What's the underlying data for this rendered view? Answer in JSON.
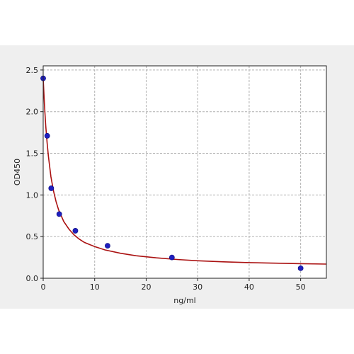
{
  "chart_data": {
    "type": "scatter",
    "title": "",
    "xlabel": "ng/ml",
    "ylabel": "OD450",
    "xlim": [
      0,
      55
    ],
    "ylim": [
      0,
      2.55
    ],
    "x_ticks": [
      0,
      10,
      20,
      30,
      40,
      50
    ],
    "x_tick_labels": [
      "0",
      "10",
      "20",
      "30",
      "40",
      "50"
    ],
    "y_ticks": [
      0,
      0.5,
      1.0,
      1.5,
      2.0,
      2.5
    ],
    "y_tick_labels": [
      "0.0",
      "0.5",
      "1.0",
      "1.5",
      "2.0",
      "2.5"
    ],
    "grid": true,
    "points": {
      "x": [
        0,
        0.78,
        1.56,
        3.12,
        6.25,
        12.5,
        25,
        50
      ],
      "y": [
        2.4,
        1.71,
        1.08,
        0.77,
        0.57,
        0.39,
        0.25,
        0.12
      ]
    },
    "fit_curve": {
      "x": [
        0,
        0.25,
        0.5,
        0.75,
        1,
        1.5,
        2,
        2.5,
        3,
        4,
        5,
        6,
        7,
        8,
        10,
        12,
        15,
        18,
        22,
        26,
        30,
        35,
        40,
        45,
        50,
        55
      ],
      "y": [
        2.4,
        2.08,
        1.83,
        1.63,
        1.47,
        1.22,
        1.05,
        0.92,
        0.82,
        0.68,
        0.59,
        0.52,
        0.47,
        0.43,
        0.38,
        0.34,
        0.3,
        0.27,
        0.245,
        0.225,
        0.21,
        0.197,
        0.188,
        0.181,
        0.175,
        0.17
      ]
    },
    "colors": {
      "points": "#1f1fbf",
      "point_edge": "#0a0a7a",
      "curve": "#aa1111",
      "grid": "#b0b0b0",
      "plot_background": "#ffffff",
      "figure_background": "#efefef"
    }
  }
}
